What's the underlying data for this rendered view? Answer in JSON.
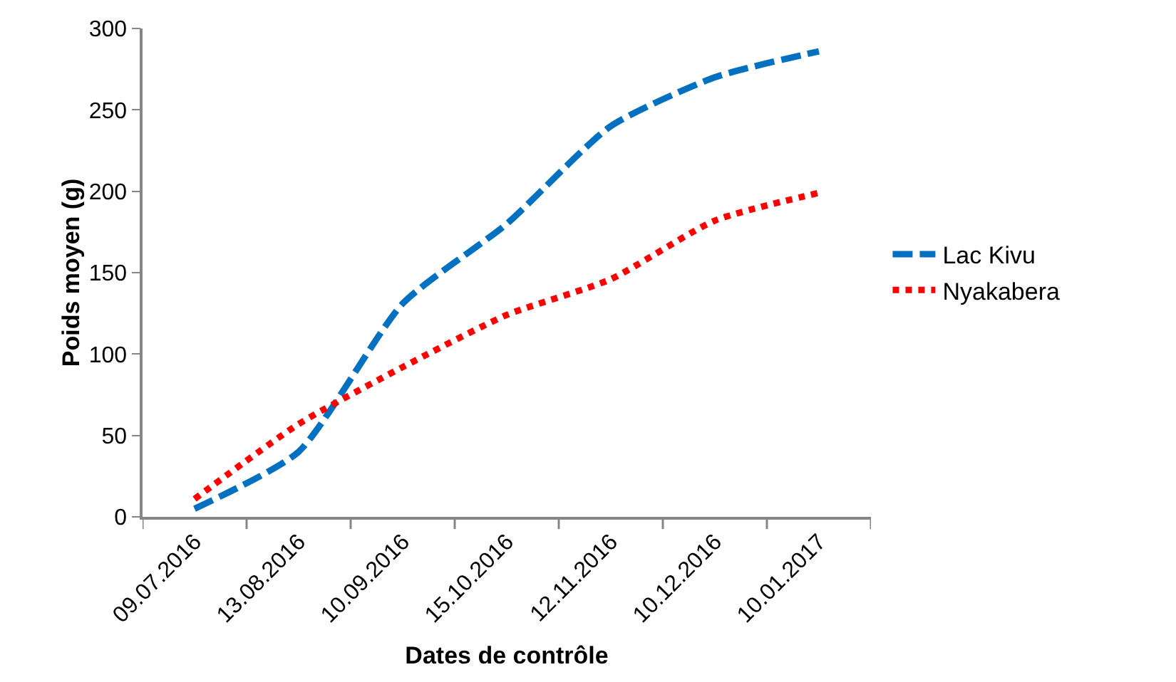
{
  "chart_data": {
    "type": "line",
    "xlabel": "Dates de contrôle",
    "ylabel": "Poids moyen (g)",
    "categories": [
      "09.07.2016",
      "13.08.2016",
      "10.09.2016",
      "15.10.2016",
      "12.11.2016",
      "10.12.2016",
      "10.01.2017"
    ],
    "series": [
      {
        "name": "Lac Kivu",
        "color": "#0070c0",
        "line_style": "dashed",
        "values": [
          5,
          40,
          131,
          180,
          240,
          270,
          286
        ]
      },
      {
        "name": "Nyakabera",
        "color": "#ff0000",
        "line_style": "dotted",
        "values": [
          11,
          57,
          92,
          124,
          146,
          182,
          199
        ]
      }
    ],
    "ylim": [
      0,
      300
    ],
    "yticks": [
      0,
      50,
      100,
      150,
      200,
      250,
      300
    ],
    "grid": false,
    "legend": "right"
  }
}
